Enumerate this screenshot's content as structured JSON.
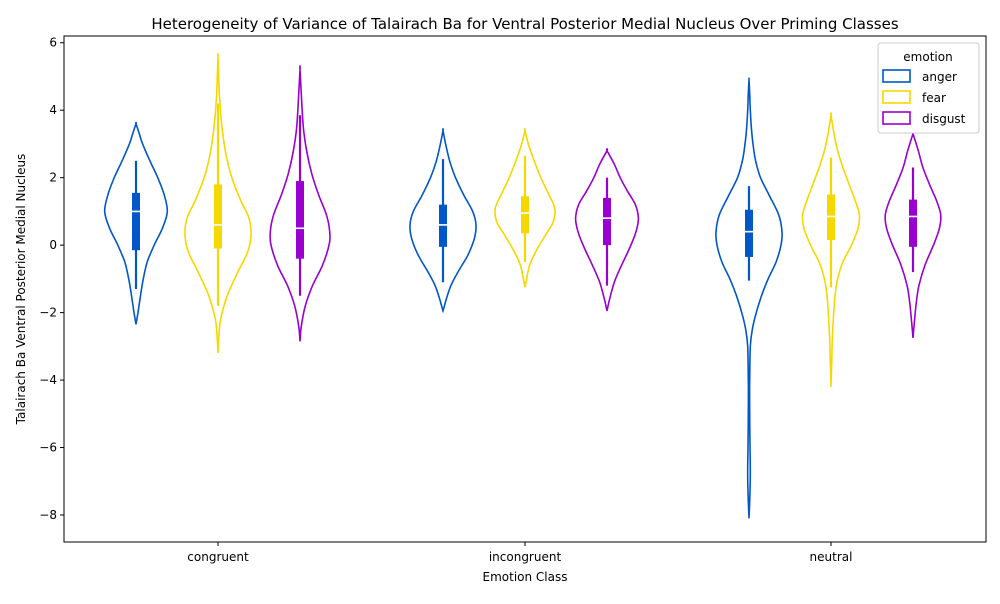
{
  "chart_data": {
    "type": "violin",
    "title": "Heterogeneity of Variance of Talairach Ba for Ventral Posterior Medial Nucleus Over Priming Classes",
    "xlabel": "Emotion Class",
    "ylabel": "Talairach Ba Ventral Posterior Medial Nucleus",
    "categories": [
      "congruent",
      "incongruent",
      "neutral"
    ],
    "ylim": [
      -8.8,
      6.2
    ],
    "yticks": [
      -8,
      -6,
      -4,
      -2,
      0,
      2,
      4,
      6
    ],
    "grid": false,
    "legend": {
      "title": "emotion",
      "placement": "top-right"
    },
    "series": [
      {
        "name": "anger",
        "color": "#0057c8",
        "groups": [
          {
            "category": "congruent",
            "min": -2.35,
            "max": 3.6,
            "q1": -0.15,
            "median": 1.0,
            "q3": 1.55,
            "whisker_low": -1.3,
            "whisker_high": 2.5,
            "density": [
              [
                -2.35,
                0.0
              ],
              [
                -2.0,
                0.06
              ],
              [
                -1.6,
                0.12
              ],
              [
                -1.0,
                0.22
              ],
              [
                -0.5,
                0.34
              ],
              [
                0.0,
                0.55
              ],
              [
                0.5,
                0.8
              ],
              [
                1.0,
                0.95
              ],
              [
                1.5,
                0.85
              ],
              [
                2.0,
                0.66
              ],
              [
                2.5,
                0.42
              ],
              [
                3.0,
                0.2
              ],
              [
                3.3,
                0.1
              ],
              [
                3.6,
                0.0
              ]
            ]
          },
          {
            "category": "incongruent",
            "min": -1.95,
            "max": 3.4,
            "q1": -0.05,
            "median": 0.6,
            "q3": 1.2,
            "whisker_low": -1.1,
            "whisker_high": 2.55,
            "density": [
              [
                -1.95,
                0.0
              ],
              [
                -1.6,
                0.1
              ],
              [
                -1.2,
                0.24
              ],
              [
                -0.8,
                0.45
              ],
              [
                -0.3,
                0.75
              ],
              [
                0.2,
                0.95
              ],
              [
                0.6,
                1.0
              ],
              [
                1.0,
                0.9
              ],
              [
                1.5,
                0.62
              ],
              [
                2.0,
                0.38
              ],
              [
                2.5,
                0.2
              ],
              [
                3.0,
                0.08
              ],
              [
                3.4,
                0.0
              ]
            ]
          },
          {
            "category": "neutral",
            "min": -8.1,
            "max": 4.9,
            "q1": -0.35,
            "median": 0.4,
            "q3": 1.05,
            "whisker_low": -1.05,
            "whisker_high": 1.75,
            "density": [
              [
                -8.1,
                0.0
              ],
              [
                -7.6,
                0.02
              ],
              [
                -6.8,
                0.04
              ],
              [
                -6.0,
                0.03
              ],
              [
                -5.0,
                0.02
              ],
              [
                -4.0,
                0.02
              ],
              [
                -3.0,
                0.04
              ],
              [
                -2.5,
                0.1
              ],
              [
                -2.0,
                0.22
              ],
              [
                -1.5,
                0.38
              ],
              [
                -1.0,
                0.58
              ],
              [
                -0.5,
                0.82
              ],
              [
                0.0,
                0.97
              ],
              [
                0.4,
                1.0
              ],
              [
                0.9,
                0.9
              ],
              [
                1.5,
                0.6
              ],
              [
                2.0,
                0.35
              ],
              [
                2.5,
                0.2
              ],
              [
                3.0,
                0.12
              ],
              [
                3.5,
                0.07
              ],
              [
                4.0,
                0.04
              ],
              [
                4.5,
                0.02
              ],
              [
                4.9,
                0.0
              ]
            ]
          }
        ]
      },
      {
        "name": "fear",
        "color": "#f5d800",
        "groups": [
          {
            "category": "congruent",
            "min": -3.2,
            "max": 5.6,
            "q1": -0.1,
            "median": 0.6,
            "q3": 1.8,
            "whisker_low": -1.8,
            "whisker_high": 4.2,
            "density": [
              [
                -3.2,
                0.0
              ],
              [
                -2.8,
                0.02
              ],
              [
                -2.2,
                0.08
              ],
              [
                -1.5,
                0.28
              ],
              [
                -0.8,
                0.6
              ],
              [
                -0.2,
                0.9
              ],
              [
                0.3,
                1.0
              ],
              [
                0.8,
                0.94
              ],
              [
                1.3,
                0.7
              ],
              [
                2.0,
                0.42
              ],
              [
                2.7,
                0.24
              ],
              [
                3.5,
                0.12
              ],
              [
                4.3,
                0.05
              ],
              [
                5.0,
                0.02
              ],
              [
                5.6,
                0.0
              ]
            ]
          },
          {
            "category": "incongruent",
            "min": -1.25,
            "max": 3.4,
            "q1": 0.35,
            "median": 0.95,
            "q3": 1.45,
            "whisker_low": -0.5,
            "whisker_high": 2.65,
            "density": [
              [
                -1.25,
                0.0
              ],
              [
                -1.0,
                0.05
              ],
              [
                -0.6,
                0.14
              ],
              [
                -0.2,
                0.32
              ],
              [
                0.3,
                0.62
              ],
              [
                0.7,
                0.86
              ],
              [
                1.1,
                0.9
              ],
              [
                1.5,
                0.72
              ],
              [
                2.0,
                0.48
              ],
              [
                2.5,
                0.28
              ],
              [
                3.0,
                0.1
              ],
              [
                3.4,
                0.0
              ]
            ]
          },
          {
            "category": "neutral",
            "min": -4.2,
            "max": 3.85,
            "q1": 0.15,
            "median": 0.85,
            "q3": 1.5,
            "whisker_low": -1.25,
            "whisker_high": 2.6,
            "density": [
              [
                -4.2,
                0.0
              ],
              [
                -3.5,
                0.02
              ],
              [
                -2.8,
                0.04
              ],
              [
                -2.2,
                0.07
              ],
              [
                -1.5,
                0.12
              ],
              [
                -1.0,
                0.2
              ],
              [
                -0.5,
                0.36
              ],
              [
                0.0,
                0.62
              ],
              [
                0.5,
                0.82
              ],
              [
                0.9,
                0.86
              ],
              [
                1.3,
                0.74
              ],
              [
                1.8,
                0.55
              ],
              [
                2.3,
                0.36
              ],
              [
                2.8,
                0.2
              ],
              [
                3.3,
                0.09
              ],
              [
                3.85,
                0.0
              ]
            ]
          }
        ]
      },
      {
        "name": "disgust",
        "color": "#9a00d0",
        "groups": [
          {
            "category": "congruent",
            "min": -2.85,
            "max": 5.2,
            "q1": -0.4,
            "median": 0.5,
            "q3": 1.9,
            "whisker_low": -1.5,
            "whisker_high": 3.85,
            "density": [
              [
                -2.85,
                0.0
              ],
              [
                -2.4,
                0.04
              ],
              [
                -1.8,
                0.16
              ],
              [
                -1.2,
                0.38
              ],
              [
                -0.6,
                0.68
              ],
              [
                0.0,
                0.88
              ],
              [
                0.4,
                0.9
              ],
              [
                0.9,
                0.8
              ],
              [
                1.5,
                0.56
              ],
              [
                2.1,
                0.36
              ],
              [
                2.8,
                0.2
              ],
              [
                3.5,
                0.1
              ],
              [
                4.3,
                0.05
              ],
              [
                5.2,
                0.0
              ]
            ]
          },
          {
            "category": "incongruent",
            "min": -1.95,
            "max": 2.8,
            "q1": 0.0,
            "median": 0.8,
            "q3": 1.4,
            "whisker_low": -1.2,
            "whisker_high": 2.0,
            "density": [
              [
                -1.95,
                0.0
              ],
              [
                -1.6,
                0.08
              ],
              [
                -1.1,
                0.22
              ],
              [
                -0.6,
                0.44
              ],
              [
                -0.1,
                0.68
              ],
              [
                0.4,
                0.88
              ],
              [
                0.8,
                0.95
              ],
              [
                1.2,
                0.86
              ],
              [
                1.6,
                0.62
              ],
              [
                2.0,
                0.4
              ],
              [
                2.4,
                0.22
              ],
              [
                2.8,
                0.0
              ]
            ]
          },
          {
            "category": "neutral",
            "min": -2.75,
            "max": 3.3,
            "q1": -0.05,
            "median": 0.85,
            "q3": 1.35,
            "whisker_low": -0.8,
            "whisker_high": 2.3,
            "density": [
              [
                -2.75,
                0.0
              ],
              [
                -2.3,
                0.04
              ],
              [
                -1.7,
                0.1
              ],
              [
                -1.2,
                0.18
              ],
              [
                -0.6,
                0.36
              ],
              [
                0.0,
                0.62
              ],
              [
                0.5,
                0.8
              ],
              [
                0.9,
                0.84
              ],
              [
                1.3,
                0.72
              ],
              [
                1.8,
                0.5
              ],
              [
                2.3,
                0.3
              ],
              [
                2.8,
                0.16
              ],
              [
                3.3,
                0.0
              ]
            ]
          }
        ]
      }
    ]
  }
}
